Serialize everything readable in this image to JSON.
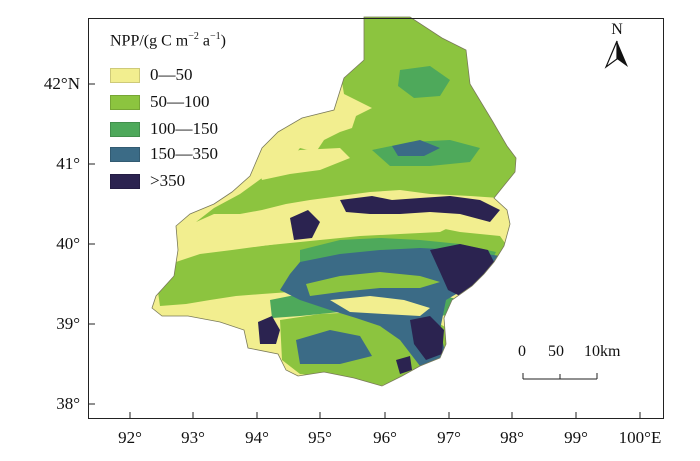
{
  "legend": {
    "title_prefix": "NPP/(g C m",
    "title_exp1": "−2",
    "title_mid": " a",
    "title_exp2": "−1",
    "title_suffix": ")",
    "items": [
      {
        "label": "0—50",
        "color": "#f2ee8f"
      },
      {
        "label": "50—100",
        "color": "#8cc43f"
      },
      {
        "label": "100—150",
        "color": "#4ea95b"
      },
      {
        "label": "150—350",
        "color": "#3b6b86"
      },
      {
        "label": ">350",
        "color": "#2b2350"
      }
    ]
  },
  "latitude_labels": [
    "42°N",
    "41°",
    "40°",
    "39°",
    "38°"
  ],
  "longitude_labels": [
    "92°",
    "93°",
    "94°",
    "95°",
    "96°",
    "97°",
    "98°",
    "99°",
    "100°E"
  ],
  "north_arrow": {
    "letter": "N",
    "icon": "north-arrow-icon"
  },
  "scale_bar": {
    "tick_0": "0",
    "tick_50": "50",
    "tick_100": "10km"
  }
}
